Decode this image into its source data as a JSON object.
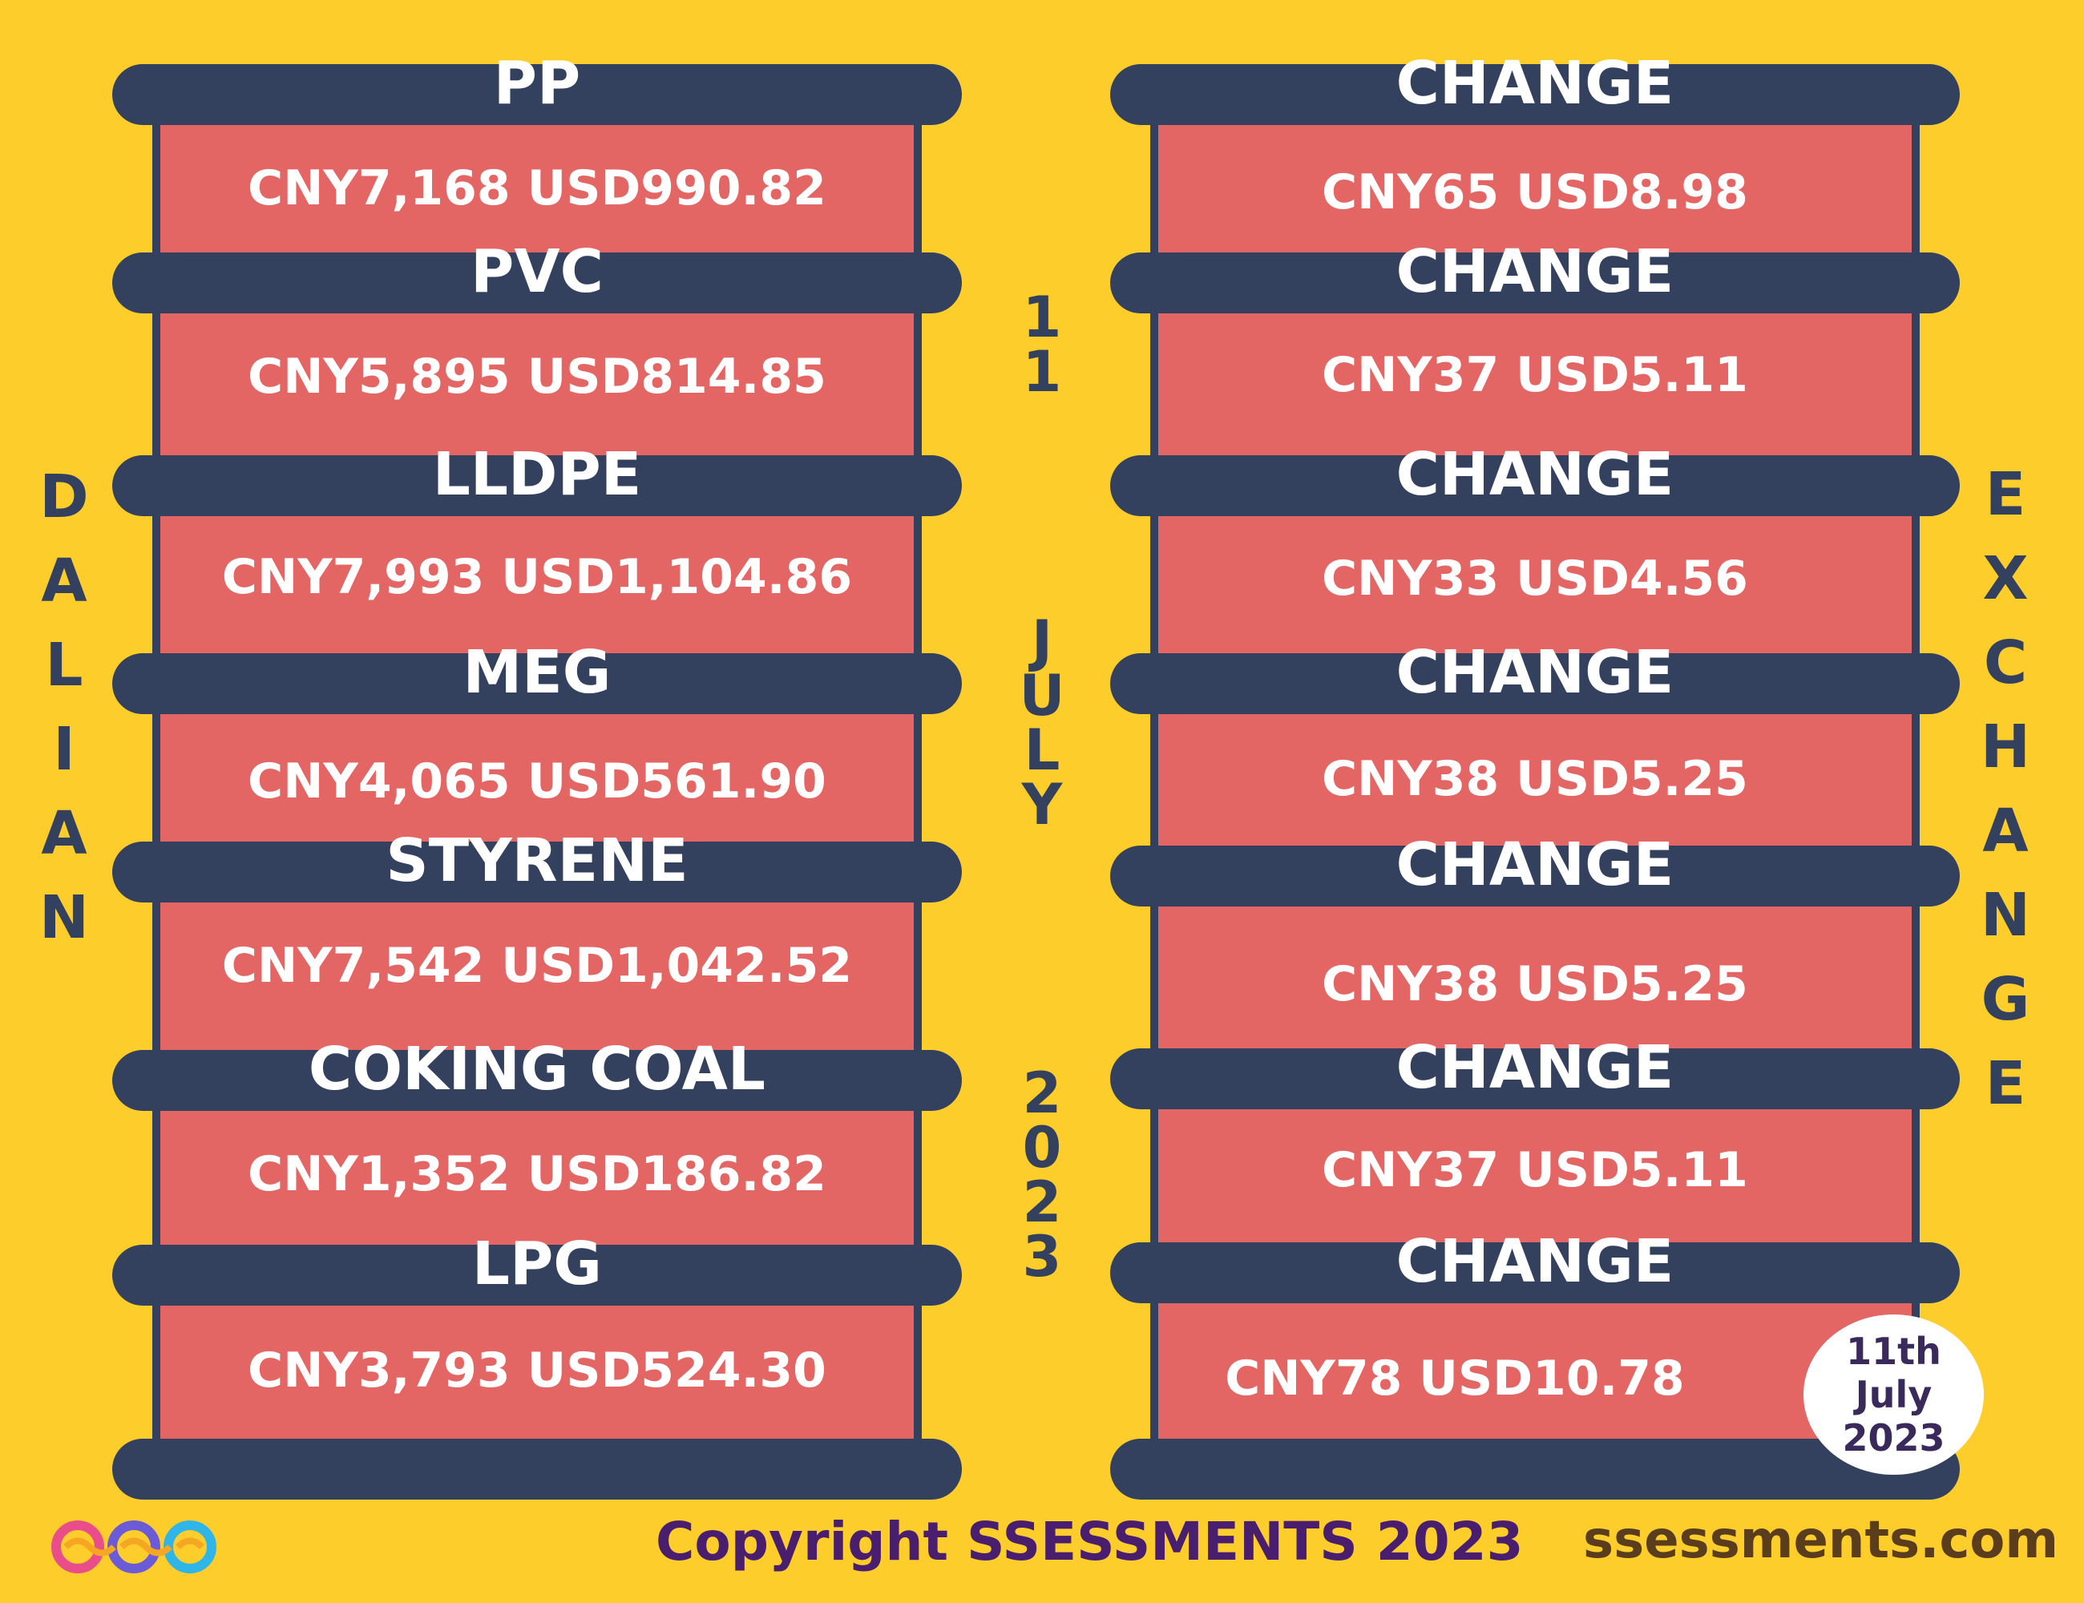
{
  "colors": {
    "background": "#fdcd2b",
    "bar": "#33415f",
    "panel": "#e36664",
    "text_light": "#ffffff",
    "copyright": "#4a1e6e",
    "website": "#5a3d1c"
  },
  "left_vertical_title": [
    "D",
    "A",
    "L",
    "I",
    "A",
    "N"
  ],
  "right_vertical_title": [
    "E",
    "X",
    "C",
    "H",
    "A",
    "N",
    "G",
    "E"
  ],
  "middle_date": {
    "day": [
      "1",
      "1"
    ],
    "month": [
      "J",
      "U",
      "L",
      "Y"
    ],
    "year": [
      "2",
      "0",
      "2",
      "3"
    ]
  },
  "commodities": [
    {
      "name": "PP",
      "value": "CNY7,168  USD990.82"
    },
    {
      "name": "PVC",
      "value": "CNY5,895  USD814.85"
    },
    {
      "name": "LLDPE",
      "value": "CNY7,993  USD1,104.86"
    },
    {
      "name": "MEG",
      "value": "CNY4,065  USD561.90"
    },
    {
      "name": "STYRENE",
      "value": "CNY7,542  USD1,042.52"
    },
    {
      "name": "COKING COAL",
      "value": "CNY1,352  USD186.82"
    },
    {
      "name": "LPG",
      "value": "CNY3,793  USD524.30"
    }
  ],
  "changes": [
    {
      "label": "CHANGE",
      "value": "CNY65  USD8.98"
    },
    {
      "label": "CHANGE",
      "value": "CNY37  USD5.11"
    },
    {
      "label": "CHANGE",
      "value": "CNY33  USD4.56"
    },
    {
      "label": "CHANGE",
      "value": "CNY38  USD5.25"
    },
    {
      "label": "CHANGE",
      "value": "CNY38  USD5.25"
    },
    {
      "label": "CHANGE",
      "value": "CNY37  USD5.11"
    },
    {
      "label": "CHANGE",
      "value": "CNY78  USD10.78"
    }
  ],
  "date_badge": [
    "11th",
    "July",
    "2023"
  ],
  "footer": {
    "copyright": "Copyright SSESSMENTS 2023",
    "website": "ssessments.com"
  },
  "logo_icon": "infinity-circles-logo-icon"
}
